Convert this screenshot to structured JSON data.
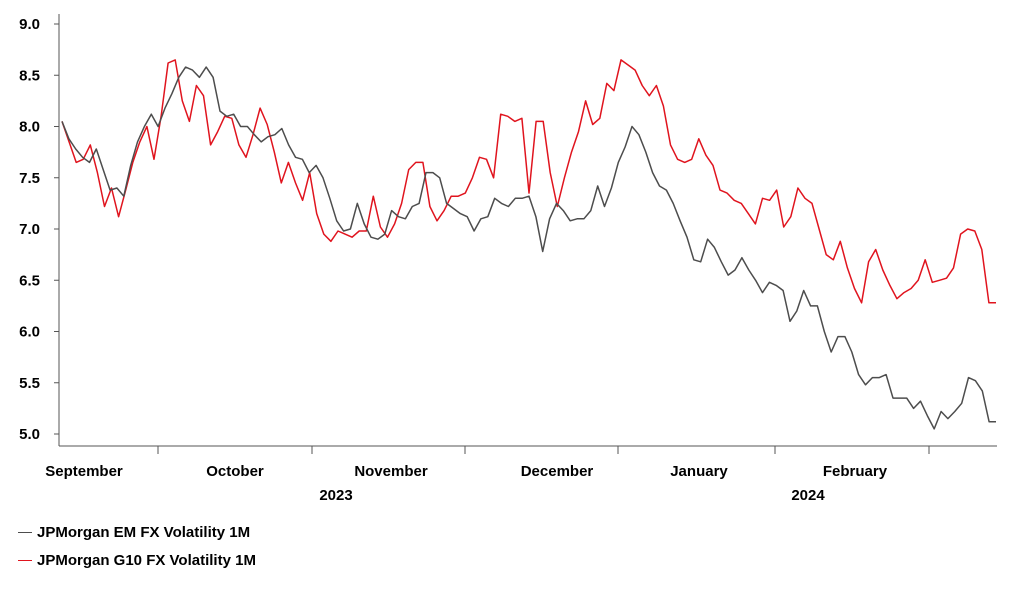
{
  "chart_data": {
    "type": "line",
    "title": "",
    "xlabel": "",
    "ylabel": "",
    "ylim": [
      5.0,
      9.0
    ],
    "yticks": [
      "9.0",
      "8.5",
      "8.0",
      "7.5",
      "7.0",
      "6.5",
      "6.0",
      "5.5",
      "5.0"
    ],
    "month_labels": [
      "September",
      "October",
      "November",
      "December",
      "January",
      "February"
    ],
    "year_labels": [
      "2023",
      "2024"
    ],
    "grid": false,
    "legend_position": "bottom-left",
    "series": [
      {
        "name": "JPMorgan EM FX Volatility 1M",
        "color": "#4d4d4d",
        "values": [
          8.05,
          7.88,
          7.78,
          7.7,
          7.65,
          7.78,
          7.58,
          7.38,
          7.4,
          7.32,
          7.62,
          7.85,
          8.0,
          8.12,
          8.0,
          8.18,
          8.32,
          8.48,
          8.58,
          8.55,
          8.48,
          8.58,
          8.48,
          8.15,
          8.1,
          8.12,
          8.0,
          8.0,
          7.92,
          7.85,
          7.9,
          7.92,
          7.98,
          7.82,
          7.7,
          7.68,
          7.55,
          7.62,
          7.5,
          7.3,
          7.08,
          6.98,
          7.0,
          7.25,
          7.05,
          6.92,
          6.9,
          6.95,
          7.18,
          7.12,
          7.1,
          7.22,
          7.25,
          7.55,
          7.55,
          7.5,
          7.25,
          7.2,
          7.15,
          7.12,
          6.98,
          7.1,
          7.12,
          7.3,
          7.25,
          7.22,
          7.3,
          7.3,
          7.32,
          7.12,
          6.78,
          7.1,
          7.25,
          7.18,
          7.08,
          7.1,
          7.1,
          7.18,
          7.42,
          7.22,
          7.4,
          7.65,
          7.8,
          8.0,
          7.92,
          7.75,
          7.55,
          7.42,
          7.38,
          7.25,
          7.08,
          6.92,
          6.7,
          6.68,
          6.9,
          6.82,
          6.68,
          6.55,
          6.6,
          6.72,
          6.6,
          6.5,
          6.38,
          6.48,
          6.45,
          6.4,
          6.1,
          6.2,
          6.4,
          6.25,
          6.25,
          6.0,
          5.8,
          5.95,
          5.95,
          5.8,
          5.58,
          5.48,
          5.55,
          5.55,
          5.58,
          5.35,
          5.35,
          5.35,
          5.25,
          5.32,
          5.18,
          5.05,
          5.22,
          5.15,
          5.22,
          5.3,
          5.55,
          5.52,
          5.42,
          5.12,
          5.12
        ]
      },
      {
        "name": "JPMorgan G10 FX Volatility 1M",
        "color": "#e0141e",
        "values": [
          8.05,
          7.85,
          7.65,
          7.68,
          7.82,
          7.55,
          7.22,
          7.4,
          7.12,
          7.38,
          7.65,
          7.85,
          8.0,
          7.68,
          8.1,
          8.62,
          8.65,
          8.25,
          8.05,
          8.4,
          8.3,
          7.82,
          7.95,
          8.1,
          8.08,
          7.82,
          7.7,
          7.92,
          8.18,
          8.02,
          7.75,
          7.45,
          7.65,
          7.45,
          7.28,
          7.55,
          7.15,
          6.95,
          6.88,
          6.98,
          6.95,
          6.92,
          6.98,
          6.98,
          7.32,
          7.02,
          6.92,
          7.05,
          7.25,
          7.58,
          7.65,
          7.65,
          7.22,
          7.08,
          7.18,
          7.32,
          7.32,
          7.35,
          7.5,
          7.7,
          7.68,
          7.5,
          8.12,
          8.1,
          8.05,
          8.08,
          7.35,
          8.05,
          8.05,
          7.55,
          7.22,
          7.5,
          7.75,
          7.95,
          8.25,
          8.02,
          8.08,
          8.42,
          8.35,
          8.65,
          8.6,
          8.55,
          8.4,
          8.3,
          8.4,
          8.2,
          7.82,
          7.68,
          7.65,
          7.68,
          7.88,
          7.72,
          7.62,
          7.38,
          7.35,
          7.28,
          7.25,
          7.15,
          7.05,
          7.3,
          7.28,
          7.38,
          7.02,
          7.12,
          7.4,
          7.3,
          7.25,
          7.0,
          6.75,
          6.7,
          6.88,
          6.62,
          6.42,
          6.28,
          6.68,
          6.8,
          6.6,
          6.45,
          6.32,
          6.38,
          6.42,
          6.5,
          6.7,
          6.48,
          6.5,
          6.52,
          6.62,
          6.95,
          7.0,
          6.98,
          6.8,
          6.28,
          6.28
        ]
      }
    ]
  }
}
